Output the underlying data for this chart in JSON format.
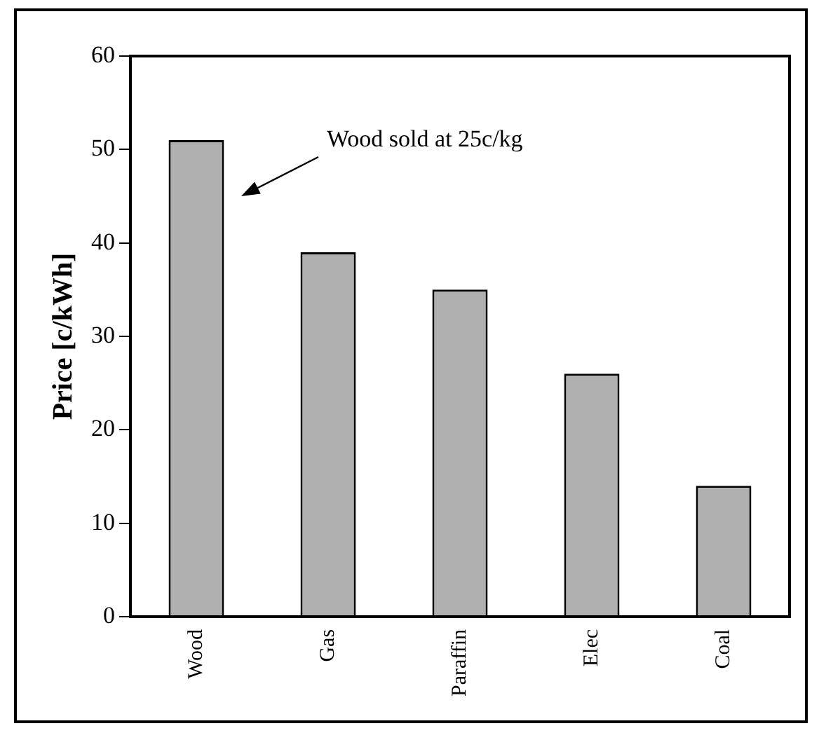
{
  "chart_data": {
    "type": "bar",
    "ylabel": "Price [c/kWh]",
    "categories": [
      "Wood",
      "Gas",
      "Paraffin",
      "Elec",
      "Coal"
    ],
    "values": [
      51,
      39,
      35,
      26,
      14
    ],
    "color": "#b0b0b0",
    "ylim": [
      0,
      60
    ],
    "yticks": [
      0,
      10,
      20,
      30,
      40,
      50,
      60
    ],
    "grid": false,
    "legend": false,
    "annotations": [
      "Wood sold at 25c/kg"
    ]
  }
}
